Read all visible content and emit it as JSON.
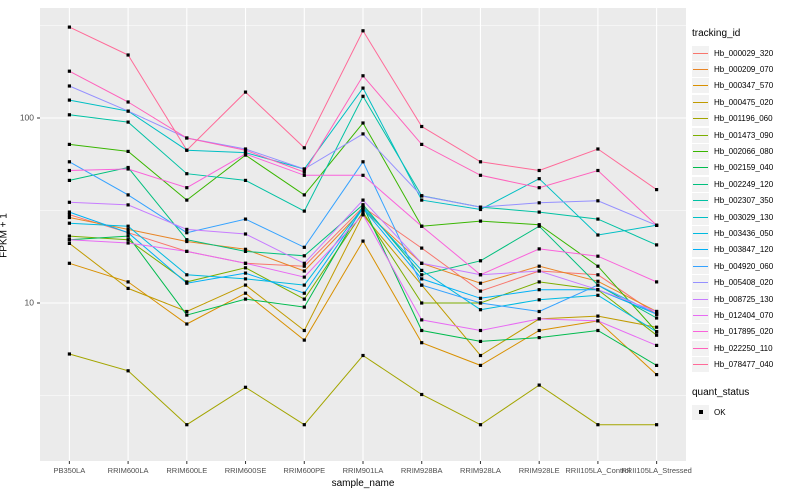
{
  "chart_data": {
    "type": "line",
    "title": "",
    "xlabel": "sample_name",
    "ylabel": "FPKM + 1",
    "y_scale": "log10",
    "ylim": [
      2,
      400
    ],
    "y_major_ticks": [
      10,
      100
    ],
    "y_tick_labels": [
      "10",
      "100"
    ],
    "y_minor_gridlines": [
      3.162,
      31.62,
      316.2
    ],
    "grid": "on",
    "panel_background": "#EBEBEB",
    "gridline_color": "#FFFFFF",
    "tick_label_color": "#4D4D4D",
    "marker": "black-square",
    "legend_position": "right",
    "x_categories": [
      "PB350LA",
      "RRIM600LA",
      "RRIM600LE",
      "RRIM600SE",
      "RRIM600PE",
      "RRIM901LA",
      "RRIM928BA",
      "RRIM928LA",
      "RRIM928LE",
      "RRII105LA_Control",
      "RRII105LA_Stressed"
    ],
    "series": [
      {
        "name": "Hb_000029_320",
        "color": "#F8766D",
        "values": [
          30,
          24,
          19,
          16.4,
          15.8,
          33,
          19.8,
          11.6,
          14.9,
          14.2,
          8.7
        ]
      },
      {
        "name": "Hb_000209_070",
        "color": "#E88526",
        "values": [
          29,
          25,
          21.5,
          19.5,
          14.9,
          32,
          16.4,
          12.8,
          15.8,
          13.1,
          9
        ]
      },
      {
        "name": "Hb_000347_570",
        "color": "#D89000",
        "values": [
          16.4,
          13,
          7.7,
          11.3,
          6.3,
          21.6,
          6.1,
          4.6,
          7.1,
          8,
          4.1
        ]
      },
      {
        "name": "Hb_000475_020",
        "color": "#C09B00",
        "values": [
          21,
          12,
          9,
          12.5,
          7.1,
          30,
          12.5,
          5.2,
          8.2,
          8.5,
          7.4
        ]
      },
      {
        "name": "Hb_001196_060",
        "color": "#A3A500",
        "values": [
          5.3,
          4.3,
          2.2,
          3.5,
          2.2,
          5.2,
          3.2,
          2.2,
          3.6,
          2.2,
          2.2
        ]
      },
      {
        "name": "Hb_001473_090",
        "color": "#7CAE00",
        "values": [
          23,
          22,
          13,
          15.5,
          10.5,
          31,
          10,
          10,
          13,
          11.8,
          6.7
        ]
      },
      {
        "name": "Hb_002066_080",
        "color": "#39B600",
        "values": [
          72,
          66,
          36,
          63,
          38.4,
          94,
          26,
          27.7,
          26.5,
          15.8,
          7
        ]
      },
      {
        "name": "Hb_002159_040",
        "color": "#00BB4E",
        "values": [
          22,
          23,
          8.6,
          10.5,
          9.5,
          33.5,
          7.1,
          6.2,
          6.5,
          7.1,
          4.6
        ]
      },
      {
        "name": "Hb_002249_120",
        "color": "#00BF7D",
        "values": [
          46,
          54,
          22,
          19,
          18,
          34,
          14.2,
          16.9,
          26,
          12.5,
          8.3
        ]
      },
      {
        "name": "Hb_002307_350",
        "color": "#00C1A3",
        "values": [
          104,
          95,
          50,
          46,
          31.4,
          131,
          38,
          33,
          31,
          28.4,
          20.6
        ]
      },
      {
        "name": "Hb_003029_130",
        "color": "#00BFC4",
        "values": [
          125,
          109,
          67,
          65,
          53,
          145,
          36,
          32,
          47,
          23.3,
          26.3
        ]
      },
      {
        "name": "Hb_003436_050",
        "color": "#00BAE0",
        "values": [
          27,
          26,
          14.2,
          13.5,
          12.5,
          33,
          15,
          9.2,
          10.4,
          11,
          7
        ]
      },
      {
        "name": "Hb_003847_120",
        "color": "#00B0F6",
        "values": [
          31,
          24,
          12.8,
          14.5,
          11.3,
          32.5,
          13.5,
          10.6,
          11.8,
          11.8,
          8.7
        ]
      },
      {
        "name": "Hb_004920_060",
        "color": "#35A2FF",
        "values": [
          58,
          38.4,
          24,
          28.4,
          20,
          58,
          12.5,
          10,
          9,
          12.5,
          8.7
        ]
      },
      {
        "name": "Hb_005408_020",
        "color": "#9590FF",
        "values": [
          149,
          109,
          78,
          68,
          53,
          82,
          37.9,
          33,
          34.8,
          35.7,
          26.3
        ]
      },
      {
        "name": "Hb_008725_130",
        "color": "#C77CFF",
        "values": [
          35,
          33.9,
          25,
          23.6,
          16.4,
          36,
          16.4,
          14.2,
          14.9,
          11.8,
          9
        ]
      },
      {
        "name": "Hb_012404_070",
        "color": "#E76BF3",
        "values": [
          22,
          21.1,
          19,
          16.4,
          13.8,
          30,
          8.1,
          7.1,
          8.2,
          8,
          5.9
        ]
      },
      {
        "name": "Hb_017895_020",
        "color": "#FA62DB",
        "values": [
          52,
          53,
          42,
          64,
          49,
          49,
          26,
          14.2,
          19.6,
          17.9,
          13
        ]
      },
      {
        "name": "Hb_022250_110",
        "color": "#FF62BC",
        "values": [
          179,
          122,
          78,
          67,
          51,
          169,
          72,
          49,
          42,
          52,
          26.3
        ]
      },
      {
        "name": "Hb_078477_040",
        "color": "#FF6A98",
        "values": [
          310,
          219,
          67,
          138,
          69,
          296,
          90,
          58,
          52,
          68,
          41
        ]
      }
    ],
    "legend": {
      "tracking_title": "tracking_id",
      "quant_title": "quant_status",
      "quant_items": [
        {
          "label": "OK",
          "marker": "black-square"
        }
      ]
    }
  }
}
